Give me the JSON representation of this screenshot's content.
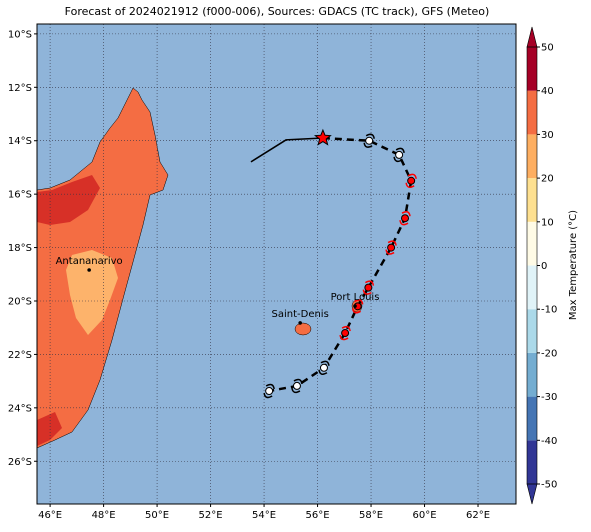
{
  "chart_data": {
    "type": "map",
    "title": "Forecast of 2024021912 (f000-006), Sources: GDACS (TC track), GFS (Meteo)",
    "xlim": [
      45.51,
      63.42
    ],
    "ylim": [
      -27.6,
      -9.63
    ],
    "grid": true,
    "xticks": [
      {
        "value": 46,
        "label": "46°E"
      },
      {
        "value": 48,
        "label": "48°E"
      },
      {
        "value": 50,
        "label": "50°E"
      },
      {
        "value": 52,
        "label": "52°E"
      },
      {
        "value": 54,
        "label": "54°E"
      },
      {
        "value": 56,
        "label": "56°E"
      },
      {
        "value": 58,
        "label": "58°E"
      },
      {
        "value": 60,
        "label": "60°E"
      },
      {
        "value": 62,
        "label": "62°E"
      }
    ],
    "yticks": [
      {
        "value": -10,
        "label": "10°S"
      },
      {
        "value": -12,
        "label": "12°S"
      },
      {
        "value": -14,
        "label": "14°S"
      },
      {
        "value": -16,
        "label": "16°S"
      },
      {
        "value": -18,
        "label": "18°S"
      },
      {
        "value": -20,
        "label": "20°S"
      },
      {
        "value": -22,
        "label": "22°S"
      },
      {
        "value": -24,
        "label": "24°S"
      },
      {
        "value": -26,
        "label": "26°S"
      }
    ],
    "past_track": {
      "color": "#000000",
      "lon": [
        53.51,
        54.82,
        56.2
      ],
      "lat": [
        -14.79,
        -13.97,
        -13.9
      ]
    },
    "forecast_track": {
      "lon": [
        56.2,
        57.93,
        59.05,
        59.5,
        59.27,
        58.75,
        57.9,
        57.5,
        57.03,
        56.24,
        55.23,
        54.19
      ],
      "lat": [
        -13.9,
        -14.0,
        -14.53,
        -15.5,
        -16.9,
        -18.0,
        -19.5,
        -20.2,
        -21.2,
        -22.5,
        -23.18,
        -23.37
      ],
      "colors": [
        "#ff0000",
        "#ffffff",
        "#ffffff",
        "#ff0000",
        "#ff0000",
        "#ff0000",
        "#ff0000",
        "#ff0000",
        "#ff0000",
        "#ffffff",
        "#ffffff",
        "#ffffff"
      ]
    },
    "cities": [
      {
        "name": "Antananarivo",
        "lon": 47.46,
        "lat": -18.84
      },
      {
        "name": "Saint-Denis",
        "lon": 55.35,
        "lat": -20.82
      },
      {
        "name": "Port Louis",
        "lon": 57.4,
        "lat": -20.19
      }
    ],
    "colorbar": {
      "label": "Max Temperature (°C)",
      "lim": [
        -50,
        50
      ],
      "ticks": [
        -50,
        -40,
        -30,
        -20,
        -10,
        0,
        10,
        20,
        30,
        40,
        50
      ],
      "colors": [
        "#313695",
        "#4575b4",
        "#74add1",
        "#abd9e9",
        "#e0f3f8",
        "#fffbe6",
        "#fee090",
        "#fdae61",
        "#f46d43",
        "#a50026"
      ]
    }
  }
}
